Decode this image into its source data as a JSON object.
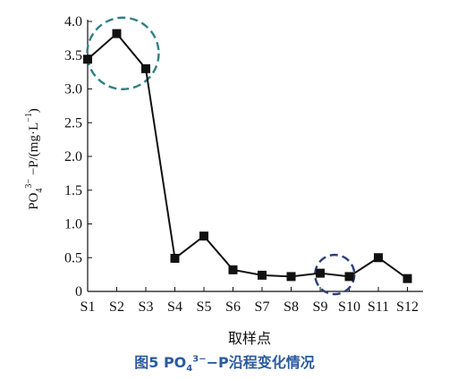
{
  "chart_data": {
    "type": "line",
    "categories": [
      "S1",
      "S2",
      "S3",
      "S4",
      "S5",
      "S6",
      "S7",
      "S8",
      "S9",
      "S10",
      "S11",
      "S12"
    ],
    "series": [
      {
        "values": [
          3.44,
          3.82,
          3.3,
          0.49,
          0.82,
          0.32,
          0.24,
          0.22,
          0.27,
          0.22,
          0.5,
          0.19
        ]
      }
    ],
    "xlabel": "取样点",
    "ylabel": {
      "main": "PO",
      "sub": "4",
      "sup": "3−",
      "rest": " −P/(mg·L",
      "unit_sup": "−1",
      "close": ")"
    },
    "yticks": [
      "0",
      "0.5",
      "1.0",
      "1.5",
      "2.0",
      "2.5",
      "3.0",
      "3.5",
      "4.0"
    ],
    "ylim": [
      0,
      4.0
    ],
    "grid": false,
    "highlight_circles": [
      {
        "center_category": "S2",
        "center_value": 3.5,
        "color": "#2f7f86"
      },
      {
        "center_category": "S9.5",
        "center_value": 0.25,
        "color": "#2e3f7a"
      }
    ],
    "line_color": "#111111"
  },
  "caption": {
    "prefix": "图5   PO",
    "sub": "4",
    "sup": "3−",
    "suffix": "−P沿程变化情况"
  }
}
